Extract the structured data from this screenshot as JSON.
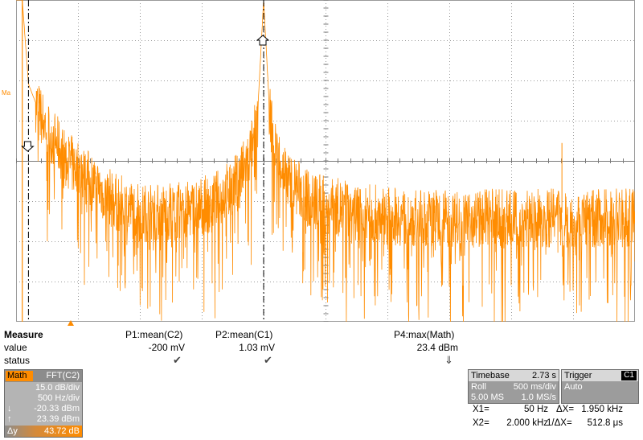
{
  "display": {
    "ma_label": "Ma",
    "colors": {
      "trace": "#ff8c00",
      "grid": "#9a9a9a",
      "cursor": "#000000"
    },
    "grid_divisions": {
      "horizontal": 10,
      "vertical": 8
    }
  },
  "measure": {
    "title": "Measure",
    "row_value": "value",
    "row_status": "status",
    "columns": [
      {
        "header": "P1:mean(C2)",
        "value": "-200 mV",
        "status": "✔"
      },
      {
        "header": "P2:mean(C1)",
        "value": "1.03 mV",
        "status": "✔"
      },
      {
        "header": "P4:max(Math)",
        "value": "23.4 dBm",
        "status": "⇓"
      }
    ]
  },
  "math_panel": {
    "tag": "Math",
    "source": "FFT(C2)",
    "scale": "15.0 dB/div",
    "freq": "500 Hz/div",
    "down_arrow": "↓",
    "down_value": "-20.33 dBm",
    "up_arrow": "↑",
    "up_value": "23.39 dBm",
    "dy_label": "Δy",
    "dy_value": "43.72 dB"
  },
  "timebase": {
    "label": "Timebase",
    "value": "2.73 s",
    "mode": "Roll",
    "per_div": "500 ms/div",
    "samples": "5.00 MS",
    "rate": "1.0 MS/s"
  },
  "trigger": {
    "label": "Trigger",
    "channel": "C1",
    "mode": "Auto"
  },
  "cursors": {
    "x1_label": "X1=",
    "x1_value": "50 Hz",
    "dx_label": "ΔX=",
    "dx_value": "1.950 kHz",
    "x2_label": "X2=",
    "x2_value": "2.000 kHz",
    "inv_dx_label": "1/ΔX=",
    "inv_dx_value": "512.8 μs"
  },
  "chart_data": {
    "type": "line",
    "x_range_hz": [
      0,
      5000
    ],
    "y_range_dbm": [
      -96.67,
      23.33
    ],
    "series": [
      {
        "name": "FFT(C2)",
        "x": [
          50,
          100,
          200,
          400,
          600,
          800,
          1000,
          1200,
          1400,
          1600,
          1800,
          1900,
          1950,
          2000,
          2050,
          2100,
          2200,
          2400,
          2800,
          3200,
          3600,
          4000,
          4400,
          4600,
          4800,
          5000
        ],
        "y": [
          23.4,
          -8,
          -20,
          -36,
          -44,
          -52,
          -56,
          -56,
          -55,
          -52,
          -44,
          -33,
          -20,
          23.4,
          -20,
          -33,
          -44,
          -52,
          -56,
          -58,
          -58,
          -58,
          -58,
          -58,
          -58,
          -58
        ]
      }
    ]
  }
}
